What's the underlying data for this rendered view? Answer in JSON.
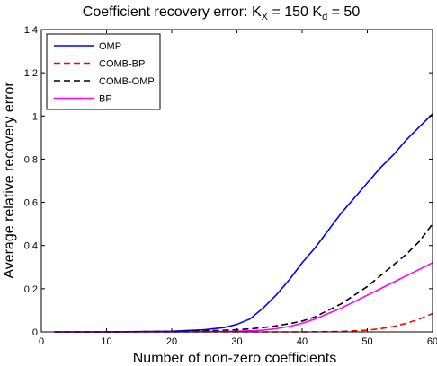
{
  "chart_data": {
    "type": "line",
    "title": "Coefficient recovery error: K",
    "title_parts": {
      "sub1": "X",
      "mid": " = 150 K",
      "sub2": "d",
      "end": " = 50"
    },
    "xlabel": "Number of non-zero coefficients",
    "ylabel": "Average relative recovery error",
    "xlim": [
      0,
      60
    ],
    "ylim": [
      0,
      1.4
    ],
    "xticks": [
      "0",
      "10",
      "20",
      "30",
      "40",
      "50",
      "60"
    ],
    "yticks": [
      "0",
      "0.2",
      "0.4",
      "0.6",
      "0.8",
      "1",
      "1.2",
      "1.4"
    ],
    "legend_position": "top-left",
    "grid": false,
    "series": [
      {
        "name": "OMP",
        "color": "#0000ff",
        "dash": "solid",
        "x": [
          2,
          10,
          20,
          25,
          28,
          30,
          32,
          34,
          36,
          38,
          40,
          42,
          44,
          46,
          48,
          50,
          52,
          54,
          56,
          58,
          60
        ],
        "y": [
          0,
          0,
          0.003,
          0.01,
          0.02,
          0.035,
          0.06,
          0.11,
          0.17,
          0.24,
          0.32,
          0.39,
          0.47,
          0.55,
          0.62,
          0.69,
          0.76,
          0.82,
          0.89,
          0.95,
          1.01
        ]
      },
      {
        "name": "COMB-BP",
        "color": "#ff0000",
        "dash": "dashed",
        "x": [
          2,
          10,
          20,
          30,
          40,
          46,
          50,
          52,
          54,
          56,
          58,
          60
        ],
        "y": [
          0,
          0,
          0,
          0,
          0,
          0.002,
          0.008,
          0.015,
          0.025,
          0.04,
          0.06,
          0.085
        ]
      },
      {
        "name": "COMB-OMP",
        "color": "#000000",
        "dash": "dashed",
        "x": [
          2,
          10,
          20,
          25,
          30,
          32,
          34,
          36,
          38,
          40,
          42,
          44,
          46,
          48,
          50,
          52,
          54,
          56,
          58,
          60
        ],
        "y": [
          0,
          0,
          0.002,
          0.005,
          0.01,
          0.014,
          0.02,
          0.028,
          0.038,
          0.05,
          0.07,
          0.1,
          0.13,
          0.17,
          0.21,
          0.26,
          0.31,
          0.36,
          0.42,
          0.5
        ]
      },
      {
        "name": "BP",
        "color": "#ff00ff",
        "dash": "solid",
        "x": [
          2,
          10,
          20,
          30,
          34,
          36,
          38,
          40,
          42,
          44,
          46,
          48,
          50,
          52,
          54,
          56,
          58,
          60
        ],
        "y": [
          0,
          0,
          0,
          0.003,
          0.008,
          0.015,
          0.025,
          0.04,
          0.06,
          0.085,
          0.11,
          0.14,
          0.17,
          0.2,
          0.23,
          0.26,
          0.29,
          0.32
        ]
      }
    ]
  }
}
